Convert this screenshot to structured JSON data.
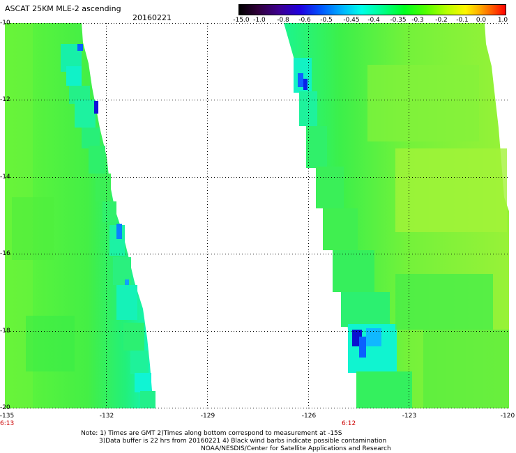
{
  "header": {
    "title": "ASCAT 25KM MLE-2 ascending",
    "date": "20160221"
  },
  "colorbar": {
    "labels": [
      "-15.0",
      "-1.0",
      "-0.8",
      "-0.6",
      "-0.5",
      "-0.45",
      "-0.4",
      "-0.35",
      "-0.3",
      "-0.2",
      "-0.1",
      "0.0",
      "1.0"
    ]
  },
  "map": {
    "lat_labels": [
      "-10",
      "-12",
      "-14",
      "-16",
      "-18",
      "-20"
    ],
    "lon_labels": [
      "-135",
      "-132",
      "-129",
      "-126",
      "-123",
      "-120"
    ],
    "pass_times": [
      "6:13",
      "6:12"
    ],
    "swath_color": "#33ff2a",
    "gridline_color": "#000000"
  },
  "footer": {
    "line1": "Note: 1) Times are GMT 2)Times along bottom correspond to measurement at -15S",
    "line2": "3)Data buffer is 22 hrs from 20160221 4) Black wind barbs indicate possible contamination",
    "line3": "NOAA/NESDIS/Center for Satellite Applications and Research"
  }
}
